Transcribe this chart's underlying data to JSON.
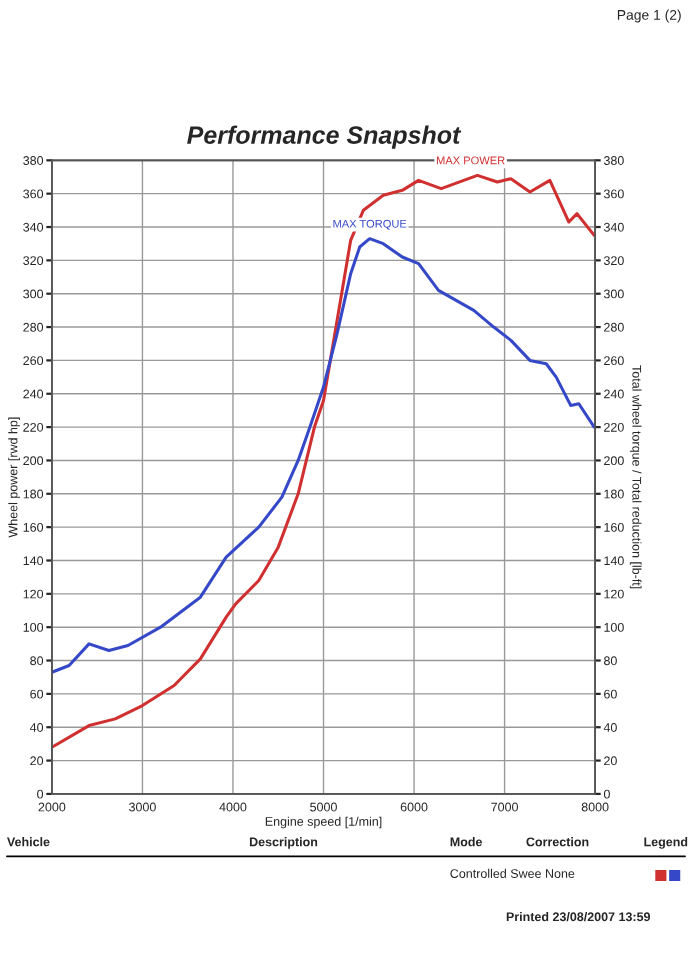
{
  "chart_data": {
    "type": "line",
    "title": "Performance Snapshot",
    "xlabel": "Engine speed [1/min]",
    "ylabel": "Wheel power [rwd hp]",
    "y2label": "Total wheel torque / Total reduction [lb-ft]",
    "series": [
      {
        "color": "#d03030",
        "axis": "y",
        "x": [
          2000,
          2410,
          2700,
          3000,
          3350,
          3640,
          3925,
          4030,
          4285,
          4500,
          4720,
          4900,
          5000,
          5150,
          5300,
          5440,
          5660,
          5870,
          6050,
          6300,
          6700,
          6920,
          7070,
          7280,
          7500,
          7710,
          7800,
          7990
        ],
        "values": [
          28,
          41,
          45,
          53,
          65,
          81,
          106,
          114,
          128,
          148,
          180,
          220,
          236,
          284,
          332,
          350,
          359,
          362,
          368,
          363,
          371,
          367,
          369,
          361,
          368,
          343,
          348,
          335
        ]
      },
      {
        "color": "#3548c8",
        "axis": "y2",
        "x": [
          2000,
          2190,
          2410,
          2630,
          2840,
          3200,
          3640,
          3925,
          4285,
          4540,
          4720,
          4850,
          5000,
          5150,
          5300,
          5400,
          5510,
          5660,
          5870,
          6050,
          6270,
          6660,
          6880,
          7070,
          7280,
          7460,
          7570,
          7730,
          7820,
          7990
        ],
        "values": [
          73,
          77,
          90,
          86,
          89,
          100,
          118,
          142,
          160,
          178,
          200,
          220,
          244,
          276,
          312,
          328,
          333,
          330,
          322,
          318,
          302,
          290,
          280,
          272,
          260,
          258,
          250,
          233,
          234,
          220
        ]
      }
    ],
    "xlim": [
      2000,
      8000
    ],
    "xticks": [
      2000,
      3000,
      4000,
      5000,
      6000,
      7000,
      8000
    ],
    "ylim": [
      0,
      380
    ],
    "yticks": [
      0,
      20,
      40,
      60,
      80,
      100,
      120,
      140,
      160,
      180,
      200,
      220,
      240,
      260,
      280,
      300,
      320,
      340,
      360,
      380
    ],
    "y2lim": [
      0,
      380
    ],
    "y2ticks": [
      0,
      20,
      40,
      60,
      80,
      100,
      120,
      140,
      160,
      180,
      200,
      220,
      240,
      260,
      280,
      300,
      320,
      340,
      360,
      380
    ],
    "grid": true,
    "annotations": [
      {
        "text": "MAX POWER",
        "x": 6625,
        "y": 371
      },
      {
        "text": "MAX TORQUE",
        "x": 5510,
        "y": 333
      },
      "Page 1 (2)",
      "Vehicle",
      "Description",
      "Mode",
      "Correction",
      "Legend",
      "Controlled Swee None",
      "Printed 23/08/2007 13:59"
    ]
  }
}
